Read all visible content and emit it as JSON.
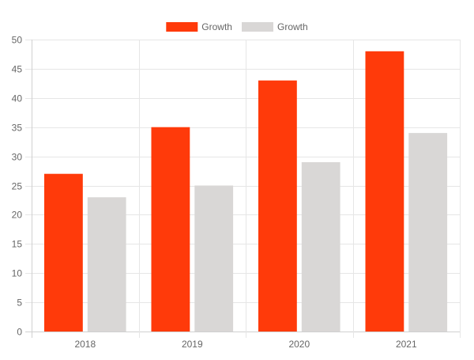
{
  "chart_data": {
    "type": "bar",
    "categories": [
      "2018",
      "2019",
      "2020",
      "2021"
    ],
    "series": [
      {
        "name": "Growth",
        "values": [
          27,
          35,
          43,
          48
        ],
        "color": "#ff3a0a"
      },
      {
        "name": "Growth",
        "values": [
          23,
          25,
          29,
          34
        ],
        "color": "#d9d7d6"
      }
    ],
    "ylim": [
      0,
      50
    ],
    "yticks": [
      0,
      5,
      10,
      15,
      20,
      25,
      30,
      35,
      40,
      45,
      50
    ],
    "grid": true,
    "legend_position": "top-center",
    "colors": {
      "grid": "#e6e6e6",
      "axis": "#d0d0d0",
      "tick_text": "#666666"
    }
  }
}
